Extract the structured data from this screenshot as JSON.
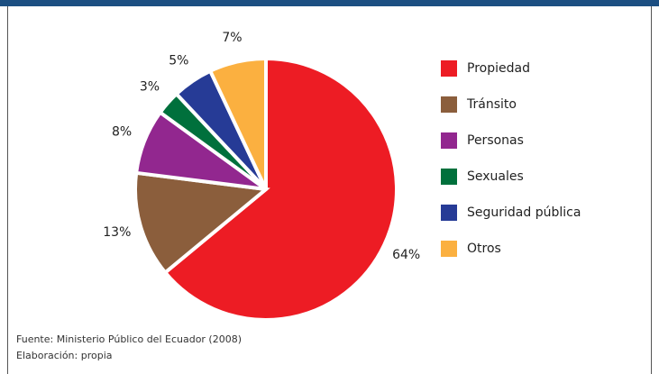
{
  "chart_data": {
    "type": "pie",
    "categories": [
      "Propiedad",
      "Tránsito",
      "Personas",
      "Sexuales",
      "Seguridad pública",
      "Otros"
    ],
    "values": [
      64,
      13,
      8,
      3,
      5,
      7
    ],
    "value_labels": [
      "64%",
      "13%",
      "8%",
      "3%",
      "5%",
      "7%"
    ],
    "colors": [
      "#ed1c24",
      "#8b5e3c",
      "#92278f",
      "#00703c",
      "#263b96",
      "#fbb040"
    ],
    "legend": "right",
    "notes": [
      "Fuente: Ministerio Público del Ecuador (2008)",
      "Elaboración: propia"
    ]
  }
}
